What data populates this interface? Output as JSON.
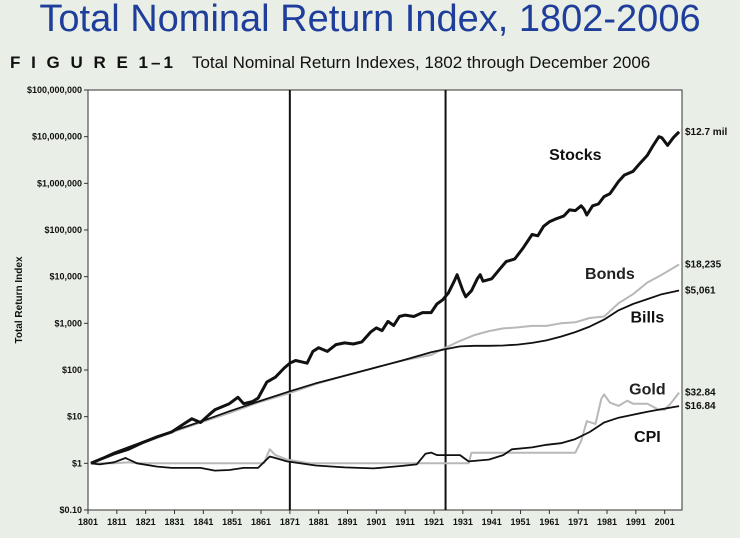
{
  "slide_title": "Total Nominal Return Index, 1802-2006",
  "figure": {
    "number": "F I G U R E 1–1",
    "caption": "Total Nominal Return Indexes, 1802 through December 2006"
  },
  "chart_data": {
    "type": "line",
    "title": "Total Nominal Return Indexes, 1802 through December 2006",
    "xlabel": "",
    "ylabel": "Total Return Index",
    "yscale": "log",
    "ylim": [
      0.1,
      100000000
    ],
    "xlim": [
      1801,
      2007
    ],
    "x_ticks": [
      "1801",
      "1811",
      "1821",
      "1831",
      "1841",
      "1851",
      "1861",
      "1871",
      "1881",
      "1891",
      "1901",
      "1911",
      "1921",
      "1931",
      "1941",
      "1951",
      "1961",
      "1971",
      "1981",
      "1991",
      "2001"
    ],
    "y_ticks": [
      {
        "value": 100000000,
        "label": "$100,000,000"
      },
      {
        "value": 10000000,
        "label": "$10,000,000"
      },
      {
        "value": 1000000,
        "label": "$1,000,000"
      },
      {
        "value": 100000,
        "label": "$100,000"
      },
      {
        "value": 10000,
        "label": "$10,000"
      },
      {
        "value": 1000,
        "label": "$1,000"
      },
      {
        "value": 100,
        "label": "$100"
      },
      {
        "value": 10,
        "label": "$10"
      },
      {
        "value": 1,
        "label": "$1"
      },
      {
        "value": 0.1,
        "label": "$0.10"
      }
    ],
    "vertical_lines": [
      1871,
      1925
    ],
    "grid": false,
    "series": [
      {
        "name": "Stocks",
        "color": "#111111",
        "end_label": "$12.7 mil",
        "points": [
          [
            1802,
            1
          ],
          [
            1805,
            1.2
          ],
          [
            1810,
            1.6
          ],
          [
            1815,
            2
          ],
          [
            1820,
            2.8
          ],
          [
            1825,
            3.7
          ],
          [
            1830,
            4.7
          ],
          [
            1835,
            7.5
          ],
          [
            1837,
            9
          ],
          [
            1840,
            7.5
          ],
          [
            1843,
            11
          ],
          [
            1845,
            14
          ],
          [
            1850,
            19
          ],
          [
            1853,
            26
          ],
          [
            1855,
            19
          ],
          [
            1858,
            21
          ],
          [
            1860,
            25
          ],
          [
            1863,
            55
          ],
          [
            1866,
            70
          ],
          [
            1869,
            110
          ],
          [
            1871,
            140
          ],
          [
            1873,
            160
          ],
          [
            1875,
            150
          ],
          [
            1877,
            140
          ],
          [
            1879,
            250
          ],
          [
            1881,
            300
          ],
          [
            1884,
            250
          ],
          [
            1887,
            350
          ],
          [
            1890,
            380
          ],
          [
            1893,
            360
          ],
          [
            1896,
            400
          ],
          [
            1899,
            650
          ],
          [
            1901,
            800
          ],
          [
            1903,
            700
          ],
          [
            1905,
            1100
          ],
          [
            1907,
            900
          ],
          [
            1909,
            1400
          ],
          [
            1911,
            1500
          ],
          [
            1914,
            1400
          ],
          [
            1917,
            1700
          ],
          [
            1920,
            1700
          ],
          [
            1922,
            2600
          ],
          [
            1924,
            3200
          ],
          [
            1926,
            4500
          ],
          [
            1928,
            8000
          ],
          [
            1929,
            11000
          ],
          [
            1931,
            5000
          ],
          [
            1932,
            3700
          ],
          [
            1934,
            5000
          ],
          [
            1936,
            9000
          ],
          [
            1937,
            11000
          ],
          [
            1938,
            8000
          ],
          [
            1941,
            9000
          ],
          [
            1944,
            15000
          ],
          [
            1946,
            21000
          ],
          [
            1949,
            24000
          ],
          [
            1952,
            42000
          ],
          [
            1955,
            80000
          ],
          [
            1957,
            75000
          ],
          [
            1959,
            120000
          ],
          [
            1961,
            150000
          ],
          [
            1963,
            170000
          ],
          [
            1966,
            200000
          ],
          [
            1968,
            270000
          ],
          [
            1970,
            260000
          ],
          [
            1972,
            330000
          ],
          [
            1973,
            280000
          ],
          [
            1974,
            210000
          ],
          [
            1976,
            330000
          ],
          [
            1978,
            360000
          ],
          [
            1980,
            520000
          ],
          [
            1982,
            600000
          ],
          [
            1985,
            1100000
          ],
          [
            1987,
            1500000
          ],
          [
            1990,
            1800000
          ],
          [
            1992,
            2500000
          ],
          [
            1995,
            4000000
          ],
          [
            1997,
            6500000
          ],
          [
            1999,
            10000000
          ],
          [
            2000,
            9500000
          ],
          [
            2002,
            6500000
          ],
          [
            2004,
            9500000
          ],
          [
            2006,
            12700000
          ]
        ]
      },
      {
        "name": "Bonds",
        "color": "#b8b8b8",
        "end_label": "$18,235",
        "points": [
          [
            1802,
            1
          ],
          [
            1810,
            1.6
          ],
          [
            1820,
            2.7
          ],
          [
            1830,
            4.6
          ],
          [
            1840,
            7.5
          ],
          [
            1850,
            12
          ],
          [
            1860,
            20
          ],
          [
            1871,
            32
          ],
          [
            1880,
            50
          ],
          [
            1890,
            75
          ],
          [
            1900,
            110
          ],
          [
            1910,
            160
          ],
          [
            1920,
            210
          ],
          [
            1925,
            300
          ],
          [
            1930,
            420
          ],
          [
            1935,
            560
          ],
          [
            1940,
            680
          ],
          [
            1945,
            780
          ],
          [
            1950,
            820
          ],
          [
            1955,
            880
          ],
          [
            1960,
            880
          ],
          [
            1965,
            1000
          ],
          [
            1970,
            1050
          ],
          [
            1975,
            1300
          ],
          [
            1980,
            1400
          ],
          [
            1985,
            2700
          ],
          [
            1990,
            4200
          ],
          [
            1995,
            7500
          ],
          [
            2000,
            11000
          ],
          [
            2006,
            18235
          ]
        ]
      },
      {
        "name": "Bills",
        "color": "#111111",
        "end_label": "$5,061",
        "points": [
          [
            1802,
            1
          ],
          [
            1810,
            1.7
          ],
          [
            1820,
            2.9
          ],
          [
            1830,
            4.8
          ],
          [
            1840,
            7.8
          ],
          [
            1850,
            13
          ],
          [
            1860,
            21
          ],
          [
            1871,
            35
          ],
          [
            1880,
            52
          ],
          [
            1890,
            75
          ],
          [
            1900,
            110
          ],
          [
            1910,
            160
          ],
          [
            1920,
            240
          ],
          [
            1925,
            280
          ],
          [
            1930,
            320
          ],
          [
            1935,
            330
          ],
          [
            1940,
            330
          ],
          [
            1945,
            335
          ],
          [
            1950,
            350
          ],
          [
            1955,
            380
          ],
          [
            1960,
            430
          ],
          [
            1965,
            520
          ],
          [
            1970,
            650
          ],
          [
            1975,
            850
          ],
          [
            1980,
            1200
          ],
          [
            1985,
            1900
          ],
          [
            1990,
            2600
          ],
          [
            1995,
            3300
          ],
          [
            2000,
            4200
          ],
          [
            2006,
            5061
          ]
        ]
      },
      {
        "name": "Gold",
        "color": "#b8b8b8",
        "end_label": "$32.84",
        "points": [
          [
            1802,
            1
          ],
          [
            1810,
            1
          ],
          [
            1815,
            1.05
          ],
          [
            1818,
            1
          ],
          [
            1830,
            1
          ],
          [
            1862,
            1
          ],
          [
            1864,
            2
          ],
          [
            1866,
            1.5
          ],
          [
            1870,
            1.2
          ],
          [
            1878,
            1
          ],
          [
            1900,
            1
          ],
          [
            1933,
            1
          ],
          [
            1934,
            1.69
          ],
          [
            1970,
            1.69
          ],
          [
            1972,
            3
          ],
          [
            1974,
            8
          ],
          [
            1977,
            7
          ],
          [
            1979,
            24
          ],
          [
            1980,
            30
          ],
          [
            1982,
            20
          ],
          [
            1985,
            17
          ],
          [
            1988,
            22
          ],
          [
            1990,
            19
          ],
          [
            1995,
            19
          ],
          [
            1999,
            14
          ],
          [
            2001,
            14
          ],
          [
            2003,
            19
          ],
          [
            2006,
            32.84
          ]
        ]
      },
      {
        "name": "CPI",
        "color": "#111111",
        "end_label": "$16.84",
        "points": [
          [
            1802,
            1
          ],
          [
            1805,
            0.95
          ],
          [
            1810,
            1.05
          ],
          [
            1814,
            1.3
          ],
          [
            1818,
            1
          ],
          [
            1825,
            0.85
          ],
          [
            1830,
            0.8
          ],
          [
            1840,
            0.8
          ],
          [
            1845,
            0.7
          ],
          [
            1850,
            0.72
          ],
          [
            1855,
            0.8
          ],
          [
            1860,
            0.8
          ],
          [
            1864,
            1.4
          ],
          [
            1866,
            1.3
          ],
          [
            1870,
            1.1
          ],
          [
            1880,
            0.9
          ],
          [
            1890,
            0.82
          ],
          [
            1900,
            0.78
          ],
          [
            1910,
            0.88
          ],
          [
            1915,
            0.95
          ],
          [
            1918,
            1.6
          ],
          [
            1920,
            1.7
          ],
          [
            1922,
            1.5
          ],
          [
            1930,
            1.5
          ],
          [
            1933,
            1.1
          ],
          [
            1940,
            1.2
          ],
          [
            1945,
            1.5
          ],
          [
            1948,
            2
          ],
          [
            1955,
            2.2
          ],
          [
            1960,
            2.5
          ],
          [
            1965,
            2.7
          ],
          [
            1970,
            3.3
          ],
          [
            1975,
            4.7
          ],
          [
            1980,
            7.5
          ],
          [
            1985,
            9.5
          ],
          [
            1990,
            11
          ],
          [
            1995,
            12.8
          ],
          [
            2000,
            14.5
          ],
          [
            2006,
            16.84
          ]
        ]
      }
    ]
  }
}
